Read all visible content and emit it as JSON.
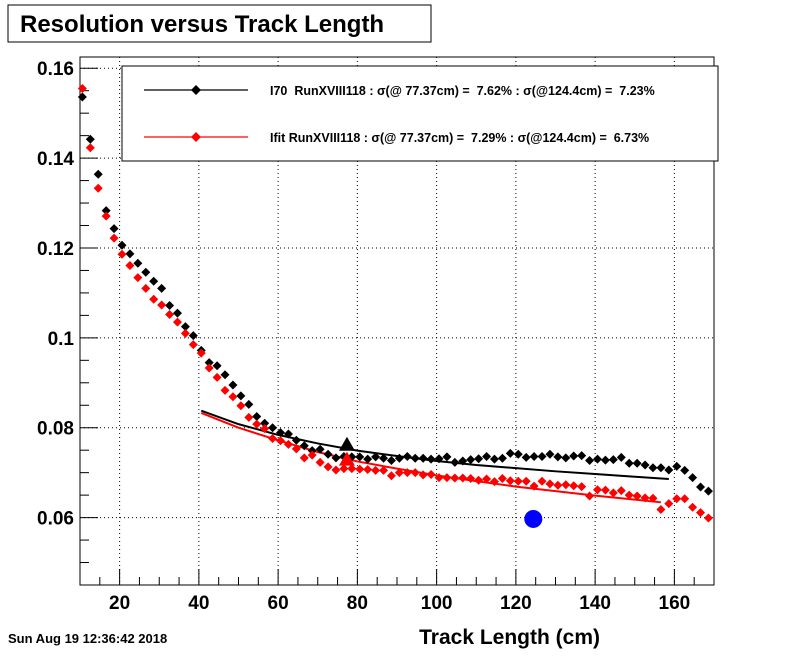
{
  "chart_data": {
    "type": "scatter",
    "title": "Resolution versus Track Length",
    "xlabel": "Track Length (cm)",
    "ylabel": "",
    "xlim": [
      10,
      170
    ],
    "ylim": [
      0.045,
      0.1625
    ],
    "x_ticks": [
      20,
      40,
      60,
      80,
      100,
      120,
      140,
      160
    ],
    "y_ticks": [
      0.06,
      0.08,
      0.1,
      0.12,
      0.14,
      0.16
    ],
    "x_tick_labels": [
      "20",
      "40",
      "60",
      "80",
      "100",
      "120",
      "140",
      "160"
    ],
    "y_tick_labels": [
      "0.06",
      "0.08",
      "0.1",
      "0.12",
      "0.14",
      "0.16"
    ],
    "grid": true,
    "legend_position": "top-right",
    "series": [
      {
        "name": "I70  RunXVIII118 : σ(@ 77.37cm) =  7.62% : σ(@124.4cm) =  7.23%",
        "color": "#000000",
        "x": [
          10.6,
          12.6,
          14.6,
          16.6,
          18.6,
          20.6,
          22.6,
          24.6,
          26.6,
          28.6,
          30.6,
          32.6,
          34.6,
          36.6,
          38.6,
          40.6,
          42.6,
          44.6,
          46.6,
          48.6,
          50.6,
          52.6,
          54.6,
          56.6,
          58.6,
          60.6,
          62.6,
          64.6,
          66.6,
          68.6,
          70.6,
          72.6,
          74.6,
          76.6,
          78.6,
          80.6,
          82.6,
          84.6,
          86.6,
          88.6,
          90.6,
          92.6,
          94.6,
          96.6,
          98.6,
          100.6,
          102.6,
          104.6,
          106.6,
          108.6,
          110.6,
          112.6,
          114.6,
          116.6,
          118.6,
          120.6,
          122.6,
          124.6,
          126.6,
          128.6,
          130.6,
          132.6,
          134.6,
          136.6,
          138.6,
          140.6,
          142.6,
          144.6,
          146.6,
          148.6,
          150.6,
          152.6,
          154.6,
          156.6,
          158.6,
          160.6,
          162.6,
          164.6,
          166.6,
          168.6
        ],
        "y": [
          0.1536,
          0.1442,
          0.1364,
          0.1283,
          0.1243,
          0.1206,
          0.1187,
          0.1166,
          0.1146,
          0.1126,
          0.111,
          0.1072,
          0.1055,
          0.1025,
          0.1005,
          0.0972,
          0.0945,
          0.0938,
          0.0918,
          0.0895,
          0.0871,
          0.0852,
          0.0825,
          0.081,
          0.08,
          0.0789,
          0.0786,
          0.0772,
          0.076,
          0.0749,
          0.0752,
          0.0741,
          0.0733,
          0.0736,
          0.0735,
          0.0735,
          0.073,
          0.0735,
          0.0732,
          0.0727,
          0.0732,
          0.0736,
          0.0732,
          0.0732,
          0.073,
          0.0731,
          0.0735,
          0.0723,
          0.0726,
          0.0729,
          0.0731,
          0.0736,
          0.073,
          0.0732,
          0.0743,
          0.0741,
          0.0734,
          0.0736,
          0.0736,
          0.0741,
          0.0735,
          0.0733,
          0.0737,
          0.0738,
          0.0727,
          0.073,
          0.0728,
          0.0729,
          0.0734,
          0.0721,
          0.0721,
          0.0717,
          0.0711,
          0.0711,
          0.0706,
          0.0714,
          0.0705,
          0.0689,
          0.0668,
          0.0659
        ]
      },
      {
        "name": "Ifit RunXVIII118 : σ(@ 77.37cm) =  7.29% : σ(@124.4cm) =  6.73%",
        "color": "#ff0000",
        "x": [
          10.6,
          12.6,
          14.6,
          16.6,
          18.6,
          20.6,
          22.6,
          24.6,
          26.6,
          28.6,
          30.6,
          32.6,
          34.6,
          36.6,
          38.6,
          40.6,
          42.6,
          44.6,
          46.6,
          48.6,
          50.6,
          52.6,
          54.6,
          56.6,
          58.6,
          60.6,
          62.6,
          64.6,
          66.6,
          68.6,
          70.6,
          72.6,
          74.6,
          76.6,
          78.6,
          80.6,
          82.6,
          84.6,
          86.6,
          88.6,
          90.6,
          92.6,
          94.6,
          96.6,
          98.6,
          100.6,
          102.6,
          104.6,
          106.6,
          108.6,
          110.6,
          112.6,
          114.6,
          116.6,
          118.6,
          120.6,
          122.6,
          124.6,
          126.6,
          128.6,
          130.6,
          132.6,
          134.6,
          136.6,
          138.6,
          140.6,
          142.6,
          144.6,
          146.6,
          148.6,
          150.6,
          152.6,
          154.6,
          156.6,
          158.6,
          160.6,
          162.6,
          164.6,
          166.6,
          168.6
        ],
        "y": [
          0.1555,
          0.1423,
          0.1333,
          0.1271,
          0.1222,
          0.1186,
          0.1161,
          0.1134,
          0.111,
          0.1086,
          0.1073,
          0.1052,
          0.1035,
          0.101,
          0.0985,
          0.0966,
          0.0933,
          0.0912,
          0.0883,
          0.0869,
          0.0849,
          0.0823,
          0.0808,
          0.0798,
          0.0776,
          0.0771,
          0.0763,
          0.0753,
          0.0733,
          0.0739,
          0.0723,
          0.0713,
          0.0706,
          0.0709,
          0.0709,
          0.0708,
          0.0707,
          0.0705,
          0.0705,
          0.0693,
          0.07,
          0.07,
          0.07,
          0.0695,
          0.0696,
          0.0689,
          0.0689,
          0.0688,
          0.0688,
          0.0687,
          0.0683,
          0.0686,
          0.068,
          0.0687,
          0.0682,
          0.0681,
          0.0681,
          0.067,
          0.0681,
          0.0675,
          0.0672,
          0.0673,
          0.0671,
          0.0669,
          0.0648,
          0.0662,
          0.0661,
          0.0655,
          0.066,
          0.065,
          0.0648,
          0.0644,
          0.0643,
          0.0618,
          0.0631,
          0.0642,
          0.0642,
          0.0623,
          0.0611,
          0.0599
        ]
      }
    ],
    "fit_lines": [
      {
        "color": "#000000",
        "x": [
          40.6,
          50,
          60,
          70,
          80,
          90,
          100,
          110,
          120,
          130,
          140,
          150,
          158.6
        ],
        "y": [
          0.0838,
          0.0808,
          0.0784,
          0.0765,
          0.0749,
          0.0737,
          0.0726,
          0.0717,
          0.071,
          0.0703,
          0.0697,
          0.0691,
          0.0686
        ]
      },
      {
        "color": "#ff0000",
        "x": [
          40.6,
          50,
          60,
          70,
          80,
          90,
          100,
          110,
          120,
          130,
          140,
          150,
          156.6
        ],
        "y": [
          0.0833,
          0.08,
          0.0772,
          0.0746,
          0.0725,
          0.0709,
          0.0694,
          0.0681,
          0.0669,
          0.0659,
          0.0649,
          0.064,
          0.0634
        ]
      }
    ],
    "highlight_points": [
      {
        "x": 77.37,
        "y": 0.0762,
        "color": "#000000",
        "marker": "triangle"
      },
      {
        "x": 77.37,
        "y": 0.0729,
        "color": "#ff0000",
        "marker": "triangle"
      },
      {
        "x": 124.4,
        "y": 0.0597,
        "color": "#0000ff",
        "marker": "circle"
      }
    ]
  },
  "footer": {
    "datestamp": "Sun Aug 19 12:36:42 2018"
  }
}
